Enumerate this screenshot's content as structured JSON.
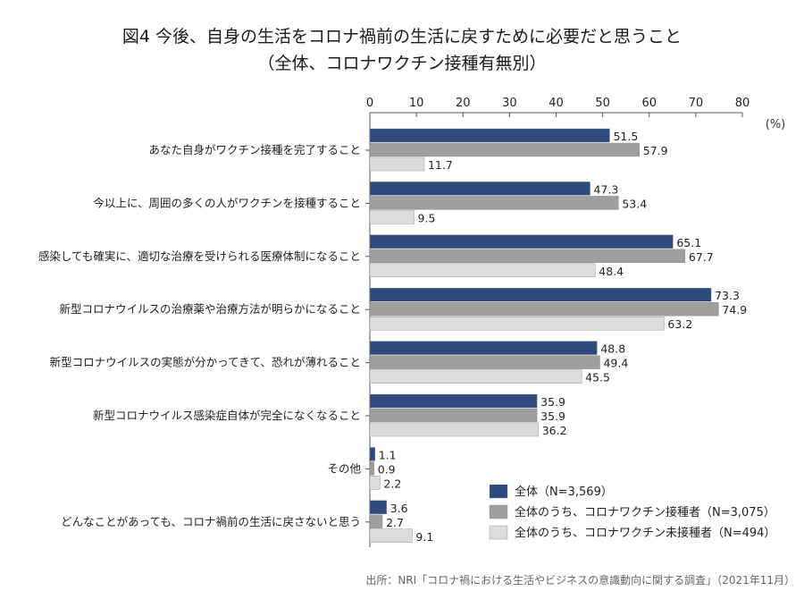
{
  "title": {
    "line1": "図4 今後、自身の生活をコロナ禍前の生活に戻すために必要だと思うこと",
    "line2": "（全体、コロナワクチン接種有無別）"
  },
  "unit_label": "(%)",
  "source": "出所：NRI「コロナ禍における生活やビジネスの意識動向に関する調査」（2021年11月）",
  "chart_data": {
    "type": "bar",
    "orientation": "horizontal",
    "xlim": [
      0,
      80
    ],
    "x_ticks": [
      0,
      10,
      20,
      30,
      40,
      50,
      60,
      70,
      80
    ],
    "grid": false,
    "legend_position": "bottom-right",
    "categories": [
      "あなた自身がワクチン接種を完了すること",
      "今以上に、周囲の多くの人がワクチンを接種すること",
      "感染しても確実に、適切な治療を受けられる医療体制になること",
      "新型コロナウイルスの治療薬や治療方法が明らかになること",
      "新型コロナウイルスの実態が分かってきて、恐れが薄れること",
      "新型コロナウイルス感染症自体が完全になくなること",
      "その他",
      "どんなことがあっても、コロナ禍前の生活に戻さないと思う"
    ],
    "series": [
      {
        "name": "全体（N=3,569）",
        "color": "#2e4a7d",
        "values": [
          51.5,
          47.3,
          65.1,
          73.3,
          48.8,
          35.9,
          1.1,
          3.6
        ]
      },
      {
        "name": "全体のうち、コロナワクチン接種者（N=3,075）",
        "color": "#9e9e9e",
        "values": [
          57.9,
          53.4,
          67.7,
          74.9,
          49.4,
          35.9,
          0.9,
          2.7
        ]
      },
      {
        "name": "全体のうち、コロナワクチン未接種者（N=494）",
        "color": "#dcdcdc",
        "values": [
          11.7,
          9.5,
          48.4,
          63.2,
          45.5,
          36.2,
          2.2,
          9.1
        ]
      }
    ]
  }
}
